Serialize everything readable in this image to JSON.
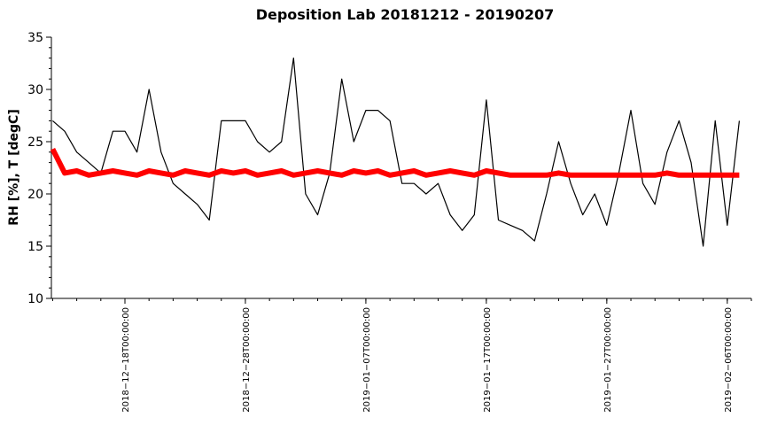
{
  "chart_data": {
    "type": "line",
    "title": "Deposition Lab 20181212 - 20190207",
    "y_label": "RH [%], T [degC]",
    "x": [
      "2018-12-12",
      "2018-12-13",
      "2018-12-14",
      "2018-12-15",
      "2018-12-16",
      "2018-12-17",
      "2018-12-18",
      "2018-12-19",
      "2018-12-20",
      "2018-12-21",
      "2018-12-22",
      "2018-12-23",
      "2018-12-24",
      "2018-12-25",
      "2018-12-26",
      "2018-12-27",
      "2018-12-28",
      "2018-12-29",
      "2018-12-30",
      "2018-12-31",
      "2019-01-01",
      "2019-01-02",
      "2019-01-03",
      "2019-01-04",
      "2019-01-05",
      "2019-01-06",
      "2019-01-07",
      "2019-01-08",
      "2019-01-09",
      "2019-01-10",
      "2019-01-11",
      "2019-01-12",
      "2019-01-13",
      "2019-01-14",
      "2019-01-15",
      "2019-01-16",
      "2019-01-17",
      "2019-01-18",
      "2019-01-19",
      "2019-01-20",
      "2019-01-21",
      "2019-01-22",
      "2019-01-23",
      "2019-01-24",
      "2019-01-25",
      "2019-01-26",
      "2019-01-27",
      "2019-01-28",
      "2019-01-29",
      "2019-01-30",
      "2019-01-31",
      "2019-02-01",
      "2019-02-02",
      "2019-02-03",
      "2019-02-04",
      "2019-02-05",
      "2019-02-06",
      "2019-02-07"
    ],
    "series": [
      {
        "name": "RH",
        "color": "#000000",
        "values": [
          27,
          26,
          24,
          23,
          22,
          26,
          26,
          24,
          30,
          24,
          21,
          20,
          19,
          17.5,
          27,
          27,
          27,
          25,
          24,
          25,
          33,
          20,
          18,
          22,
          31,
          25,
          28,
          28,
          27,
          21,
          21,
          20,
          21,
          18,
          16.5,
          18,
          29,
          17.5,
          17,
          16.5,
          15.5,
          20,
          25,
          21,
          18,
          20,
          17,
          22,
          28,
          21,
          19,
          24,
          27,
          23,
          15,
          27,
          17,
          27
        ]
      },
      {
        "name": "T",
        "color": "#ff0000",
        "values": [
          24.3,
          22,
          22.2,
          21.8,
          22,
          22.2,
          22,
          21.8,
          22.2,
          22,
          21.8,
          22.2,
          22,
          21.8,
          22.2,
          22,
          22.2,
          21.8,
          22,
          22.2,
          21.8,
          22,
          22.2,
          22,
          21.8,
          22.2,
          22,
          22.2,
          21.8,
          22,
          22.2,
          21.8,
          22,
          22.2,
          22,
          21.8,
          22.2,
          22,
          21.8,
          21.8,
          21.8,
          21.8,
          22,
          21.8,
          21.8,
          21.8,
          21.8,
          21.8,
          21.8,
          21.8,
          21.8,
          22,
          21.8,
          21.8,
          21.8,
          21.8,
          21.8,
          21.8
        ]
      }
    ],
    "xlim": [
      "2018-12-11T21:30",
      "2019-02-08T00:00"
    ],
    "xticks": [
      {
        "value": "2018-12-18",
        "label": "2018−12−18T00:00:00"
      },
      {
        "value": "2018-12-28",
        "label": "2018−12−28T00:00:00"
      },
      {
        "value": "2019-01-07",
        "label": "2019−01−07T00:00:00"
      },
      {
        "value": "2019-01-17",
        "label": "2019−01−17T00:00:00"
      },
      {
        "value": "2019-01-27",
        "label": "2019−01−27T00:00:00"
      },
      {
        "value": "2019-02-06",
        "label": "2019−02−06T00:00:00"
      }
    ],
    "x_minor_tick_days": 2,
    "ylim": [
      10,
      35
    ],
    "yticks": [
      10,
      15,
      20,
      25,
      30,
      35
    ],
    "y_minor_tick_step": 1
  }
}
